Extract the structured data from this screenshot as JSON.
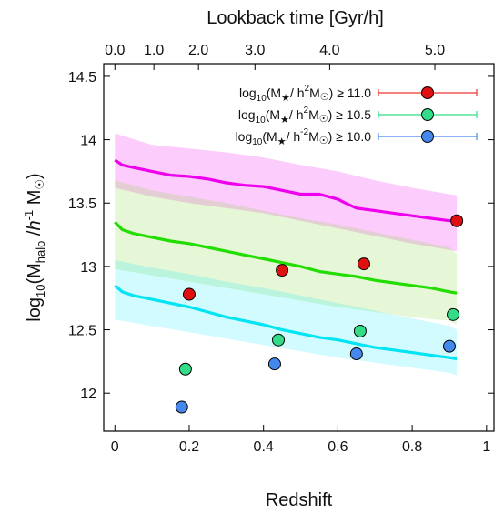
{
  "chart_data": {
    "type": "line",
    "xlabel": "Redshift",
    "ylabel_parts": {
      "pre": "log",
      "sub1": "10",
      "mid": "(M",
      "sub2": "halo",
      "slash": " /",
      "h": "h",
      "sup": "-1",
      "end": " M",
      "sun": "☉",
      "close": ")"
    },
    "top_xlabel": "Lookback time [Gyr/h]",
    "xlim": [
      -0.03,
      1.02
    ],
    "ylim": [
      11.7,
      14.6
    ],
    "x_ticks": [
      {
        "v": 0,
        "label": "0"
      },
      {
        "v": 0.2,
        "label": "0.2"
      },
      {
        "v": 0.4,
        "label": "0.4"
      },
      {
        "v": 0.6,
        "label": "0.6"
      },
      {
        "v": 0.8,
        "label": "0.8"
      },
      {
        "v": 1,
        "label": "1"
      }
    ],
    "y_ticks": [
      {
        "v": 12,
        "label": "12"
      },
      {
        "v": 12.5,
        "label": "12.5"
      },
      {
        "v": 13,
        "label": "13"
      },
      {
        "v": 13.5,
        "label": "13.5"
      },
      {
        "v": 14,
        "label": "14"
      },
      {
        "v": 14.5,
        "label": "14.5"
      }
    ],
    "top_ticks": [
      {
        "z": 0.0,
        "label": "0.0"
      },
      {
        "z": 0.105,
        "label": "1.0"
      },
      {
        "z": 0.225,
        "label": "2.0"
      },
      {
        "z": 0.377,
        "label": "3.0"
      },
      {
        "z": 0.578,
        "label": "4.0"
      },
      {
        "z": 0.861,
        "label": "5.0"
      }
    ],
    "bands": [
      {
        "color": "#f000f0",
        "opacity": 0.2,
        "x": [
          0.0,
          0.1,
          0.2,
          0.3,
          0.4,
          0.5,
          0.6,
          0.7,
          0.8,
          0.9,
          0.92
        ],
        "upper": [
          14.05,
          13.96,
          13.93,
          13.9,
          13.86,
          13.8,
          13.75,
          13.68,
          13.62,
          13.57,
          13.56
        ],
        "lower": [
          13.62,
          13.55,
          13.5,
          13.46,
          13.42,
          13.36,
          13.3,
          13.24,
          13.18,
          13.13,
          13.12
        ]
      },
      {
        "color": "#7cd830",
        "opacity": 0.2,
        "x": [
          0.0,
          0.1,
          0.2,
          0.3,
          0.4,
          0.5,
          0.6,
          0.7,
          0.8,
          0.9,
          0.92
        ],
        "upper": [
          13.68,
          13.6,
          13.55,
          13.5,
          13.44,
          13.38,
          13.33,
          13.27,
          13.21,
          13.15,
          13.1
        ],
        "lower": [
          12.98,
          12.93,
          12.88,
          12.83,
          12.78,
          12.73,
          12.68,
          12.64,
          12.6,
          12.57,
          12.54
        ]
      },
      {
        "color": "#00e8f8",
        "opacity": 0.18,
        "x": [
          0.0,
          0.1,
          0.2,
          0.3,
          0.4,
          0.5,
          0.6,
          0.7,
          0.8,
          0.9,
          0.92
        ],
        "upper": [
          13.05,
          12.99,
          12.94,
          12.88,
          12.83,
          12.77,
          12.71,
          12.65,
          12.59,
          12.53,
          12.5
        ],
        "lower": [
          12.58,
          12.53,
          12.48,
          12.43,
          12.38,
          12.33,
          12.28,
          12.24,
          12.2,
          12.16,
          12.14
        ]
      }
    ],
    "series": [
      {
        "name": "M★ ≥ 11.0 line",
        "color": "#ee00ee",
        "x": [
          0.0,
          0.02,
          0.05,
          0.1,
          0.15,
          0.2,
          0.25,
          0.3,
          0.35,
          0.4,
          0.45,
          0.5,
          0.55,
          0.6,
          0.62,
          0.65,
          0.7,
          0.75,
          0.8,
          0.85,
          0.9,
          0.92
        ],
        "y": [
          13.84,
          13.8,
          13.78,
          13.75,
          13.72,
          13.71,
          13.69,
          13.66,
          13.64,
          13.63,
          13.6,
          13.57,
          13.57,
          13.53,
          13.5,
          13.46,
          13.44,
          13.42,
          13.4,
          13.38,
          13.36,
          13.36
        ]
      },
      {
        "name": "M★ ≥ 10.5 line",
        "color": "#22dd00",
        "x": [
          0.0,
          0.02,
          0.05,
          0.1,
          0.15,
          0.2,
          0.25,
          0.3,
          0.35,
          0.4,
          0.45,
          0.5,
          0.55,
          0.6,
          0.65,
          0.7,
          0.75,
          0.8,
          0.85,
          0.9,
          0.92
        ],
        "y": [
          13.35,
          13.29,
          13.26,
          13.23,
          13.2,
          13.18,
          13.15,
          13.12,
          13.09,
          13.06,
          13.03,
          13.0,
          12.96,
          12.94,
          12.92,
          12.89,
          12.87,
          12.85,
          12.83,
          12.8,
          12.79
        ]
      },
      {
        "name": "M★ ≥ 10.0 line",
        "color": "#00e4f4",
        "x": [
          0.0,
          0.02,
          0.05,
          0.1,
          0.15,
          0.2,
          0.25,
          0.3,
          0.35,
          0.4,
          0.45,
          0.5,
          0.55,
          0.6,
          0.65,
          0.7,
          0.75,
          0.8,
          0.85,
          0.9,
          0.92
        ],
        "y": [
          12.85,
          12.8,
          12.77,
          12.74,
          12.71,
          12.68,
          12.64,
          12.6,
          12.57,
          12.54,
          12.5,
          12.47,
          12.44,
          12.42,
          12.39,
          12.36,
          12.34,
          12.32,
          12.3,
          12.28,
          12.27
        ]
      }
    ],
    "points": [
      {
        "group": 0,
        "color": "#e11010",
        "x": [
          0.2,
          0.45,
          0.67,
          0.92
        ],
        "y": [
          12.78,
          12.97,
          13.02,
          13.36
        ]
      },
      {
        "group": 1,
        "color": "#33dd88",
        "x": [
          0.19,
          0.44,
          0.66,
          0.91
        ],
        "y": [
          12.19,
          12.42,
          12.49,
          12.62
        ]
      },
      {
        "group": 2,
        "color": "#4488ee",
        "x": [
          0.18,
          0.43,
          0.65,
          0.9
        ],
        "y": [
          11.89,
          12.23,
          12.31,
          12.37
        ]
      }
    ],
    "legend": {
      "position": "top-right",
      "entries": [
        {
          "pre": "log",
          "sub": "10",
          "mid": "(M",
          "star": "★",
          "slash": "/ h",
          "sup": "2",
          "msun": "M",
          "sun": "☉",
          "close": ")",
          "cond": "≥ 11.0",
          "color": "#e11010",
          "line_color": "#ee3333"
        },
        {
          "pre": "log",
          "sub": "10",
          "mid": "(M",
          "star": "★",
          "slash": "/ h",
          "sup": "2",
          "msun": "M",
          "sun": "☉",
          "close": ")",
          "cond": "≥ 10.5",
          "color": "#33dd88",
          "line_color": "#33dd88"
        },
        {
          "pre": "log",
          "sub": "10",
          "mid": "(M",
          "star": "★",
          "slash": "/ h",
          "sup": "-2",
          "msun": "M",
          "sun": "☉",
          "close": ")",
          "cond": "≥ 10.0",
          "color": "#4488ee",
          "line_color": "#4488ee"
        }
      ]
    },
    "grid": false
  }
}
